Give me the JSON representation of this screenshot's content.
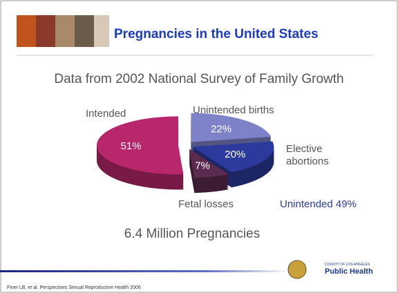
{
  "header": {
    "title": "Pregnancies in the United States"
  },
  "chart_data": {
    "type": "pie",
    "title": "Data from 2002 National Survey of Family Growth",
    "categories": [
      "Intended",
      "Unintended births",
      "Elective abortions",
      "Fetal losses"
    ],
    "values": [
      51,
      22,
      20,
      7
    ],
    "value_labels": [
      "51%",
      "22%",
      "20%",
      "7%"
    ],
    "colors": [
      "#b8266c",
      "#7e82c8",
      "#2b3a9c",
      "#5c2c50"
    ],
    "annotation": "Unintended 49%",
    "caption": "6.4 Million Pregnancies"
  },
  "footer": {
    "citation": "Finer LB, et al. Perspectives Sexual Reproductive Health 2006",
    "logo_small": "COUNTY OF LOS ANGELES",
    "logo": "Public Health"
  }
}
